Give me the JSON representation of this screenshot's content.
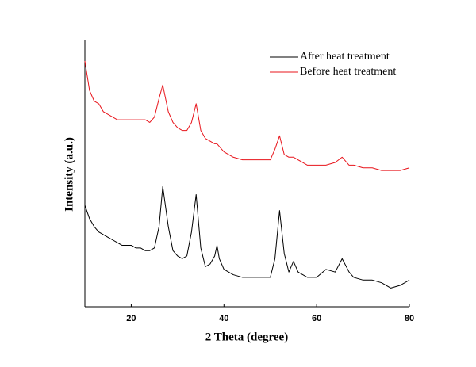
{
  "chart_data": {
    "type": "line",
    "xlabel": "2 Theta (degree)",
    "ylabel": "Intensity (a.u.)",
    "xlim": [
      10,
      80
    ],
    "xticks": [
      20,
      40,
      60,
      80
    ],
    "ylim": [
      0,
      100
    ],
    "legend": "upper right",
    "x": [
      10,
      11,
      12,
      13,
      14,
      15,
      16,
      17,
      18,
      19,
      20,
      21,
      22,
      23,
      24,
      25,
      26,
      26.8,
      28,
      29,
      30,
      31,
      32,
      33,
      34,
      35,
      36,
      37,
      38,
      38.5,
      39,
      40,
      42,
      44,
      46,
      48,
      50,
      51,
      52,
      53,
      54,
      55,
      56,
      58,
      60,
      62,
      64,
      65.5,
      67,
      68,
      70,
      72,
      74,
      76,
      78,
      80
    ],
    "series": [
      {
        "name": "After heat treatment",
        "color": "#000000",
        "values": [
          38,
          33,
          30,
          28,
          27,
          26,
          25,
          24,
          23,
          23,
          23,
          22,
          22,
          21,
          21,
          22,
          30,
          45,
          30,
          21,
          19,
          18,
          19,
          28,
          42,
          22,
          15,
          16,
          19,
          23,
          18,
          14,
          12,
          11,
          11,
          11,
          11,
          18,
          36,
          20,
          13,
          17,
          13,
          11,
          11,
          14,
          13,
          18,
          13,
          11,
          10,
          10,
          9,
          7,
          8,
          10
        ]
      },
      {
        "name": "Before heat treatment",
        "color": "#e8141b",
        "values": [
          92,
          81,
          77,
          76,
          73,
          72,
          71,
          70,
          70,
          70,
          70,
          70,
          70,
          70,
          69,
          71,
          78,
          83,
          73,
          69,
          67,
          66,
          66,
          69,
          76,
          66,
          63,
          62,
          61,
          61,
          60,
          58,
          56,
          55,
          55,
          55,
          55,
          59,
          64,
          57,
          56,
          56,
          55,
          53,
          53,
          53,
          54,
          56,
          53,
          53,
          52,
          52,
          51,
          51,
          51,
          52
        ]
      }
    ]
  }
}
